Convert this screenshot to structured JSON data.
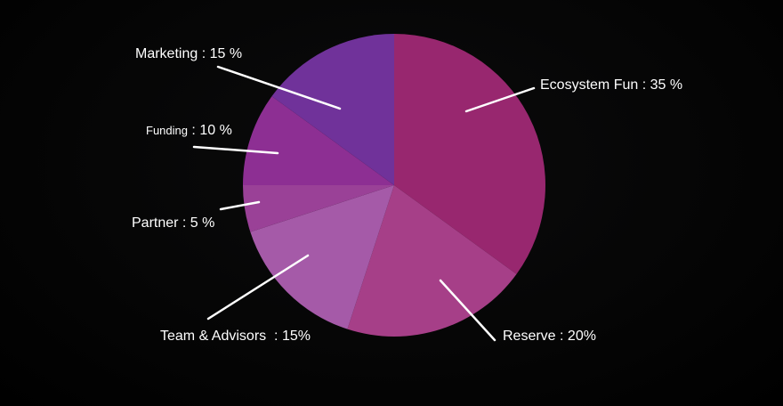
{
  "chart_data": {
    "type": "pie",
    "title": "",
    "slices": [
      {
        "name": "Ecosystem Fun",
        "value": 35,
        "color": "#98276f",
        "label_prefix": "Ecosystem Fun",
        "label_value": " : 35 %"
      },
      {
        "name": "Reserve",
        "value": 20,
        "color": "#a63f88",
        "label_prefix": "Reserve",
        "label_value": " : 20%"
      },
      {
        "name": "Team & Advisors",
        "value": 15,
        "color": "#a55aa8",
        "label_prefix": "Team & Advisors",
        "label_value": "  : 15%"
      },
      {
        "name": "Partner",
        "value": 5,
        "color": "#9a4197",
        "label_prefix": "Partner",
        "label_value": " : 5 %"
      },
      {
        "name": "Funding",
        "value": 10,
        "color": "#8d2f93",
        "label_prefix": "Funding",
        "label_value": " : 10 %"
      },
      {
        "name": "Marketing",
        "value": 15,
        "color": "#70329a",
        "label_prefix": "Marketing",
        "label_value": " : 15 %"
      }
    ],
    "start": "top",
    "direction": "clockwise",
    "legend": "callout labels"
  }
}
